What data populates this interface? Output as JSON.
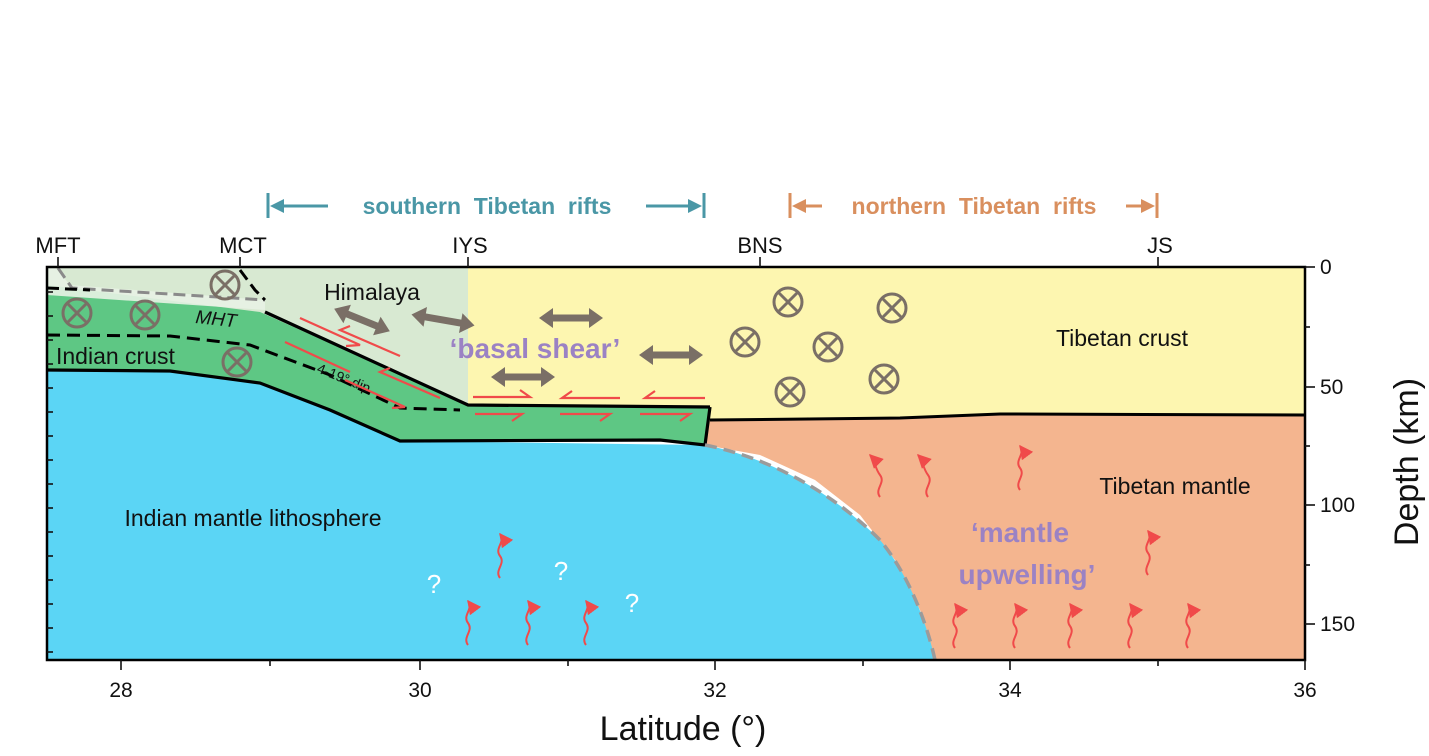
{
  "faults": {
    "mft": "MFT",
    "mct": "MCT",
    "iys": "IYS",
    "bns": "BNS",
    "js": "JS"
  },
  "rifts": {
    "southern": "southern  Tibetan  rifts",
    "northern": "northern  Tibetan  rifts"
  },
  "regions": {
    "himalaya": "Himalaya",
    "mht": "MHT",
    "indian_crust": "Indian crust",
    "dip": "4-19° dip",
    "basal_shear": "‘basal shear’",
    "tibetan_crust": "Tibetan crust",
    "tibetan_mantle": "Tibetan mantle",
    "mantle_upwelling_1": "‘mantle",
    "mantle_upwelling_2": "upwelling’",
    "indian_mantle": "Indian mantle lithosphere",
    "question": "?"
  },
  "axes": {
    "xlabel": "Latitude (°)",
    "ylabel": "Depth (km)",
    "xticks": [
      "28",
      "30",
      "32",
      "34",
      "36"
    ],
    "yticks": [
      "0",
      "50",
      "100",
      "150"
    ]
  },
  "colors": {
    "indian_mantle": "#5bd5f5",
    "tibetan_crust": "#fdf6b0",
    "tibetan_mantle": "#f4b58f",
    "himalaya": "#d8e9d2",
    "indian_crust": "#5ec784",
    "southern_rifts": "#4a97a6",
    "northern_rifts": "#d98f5e",
    "shear_text": "#9b82c4",
    "arrows": "#7a6f66",
    "red_arrows": "#f04a4a"
  }
}
